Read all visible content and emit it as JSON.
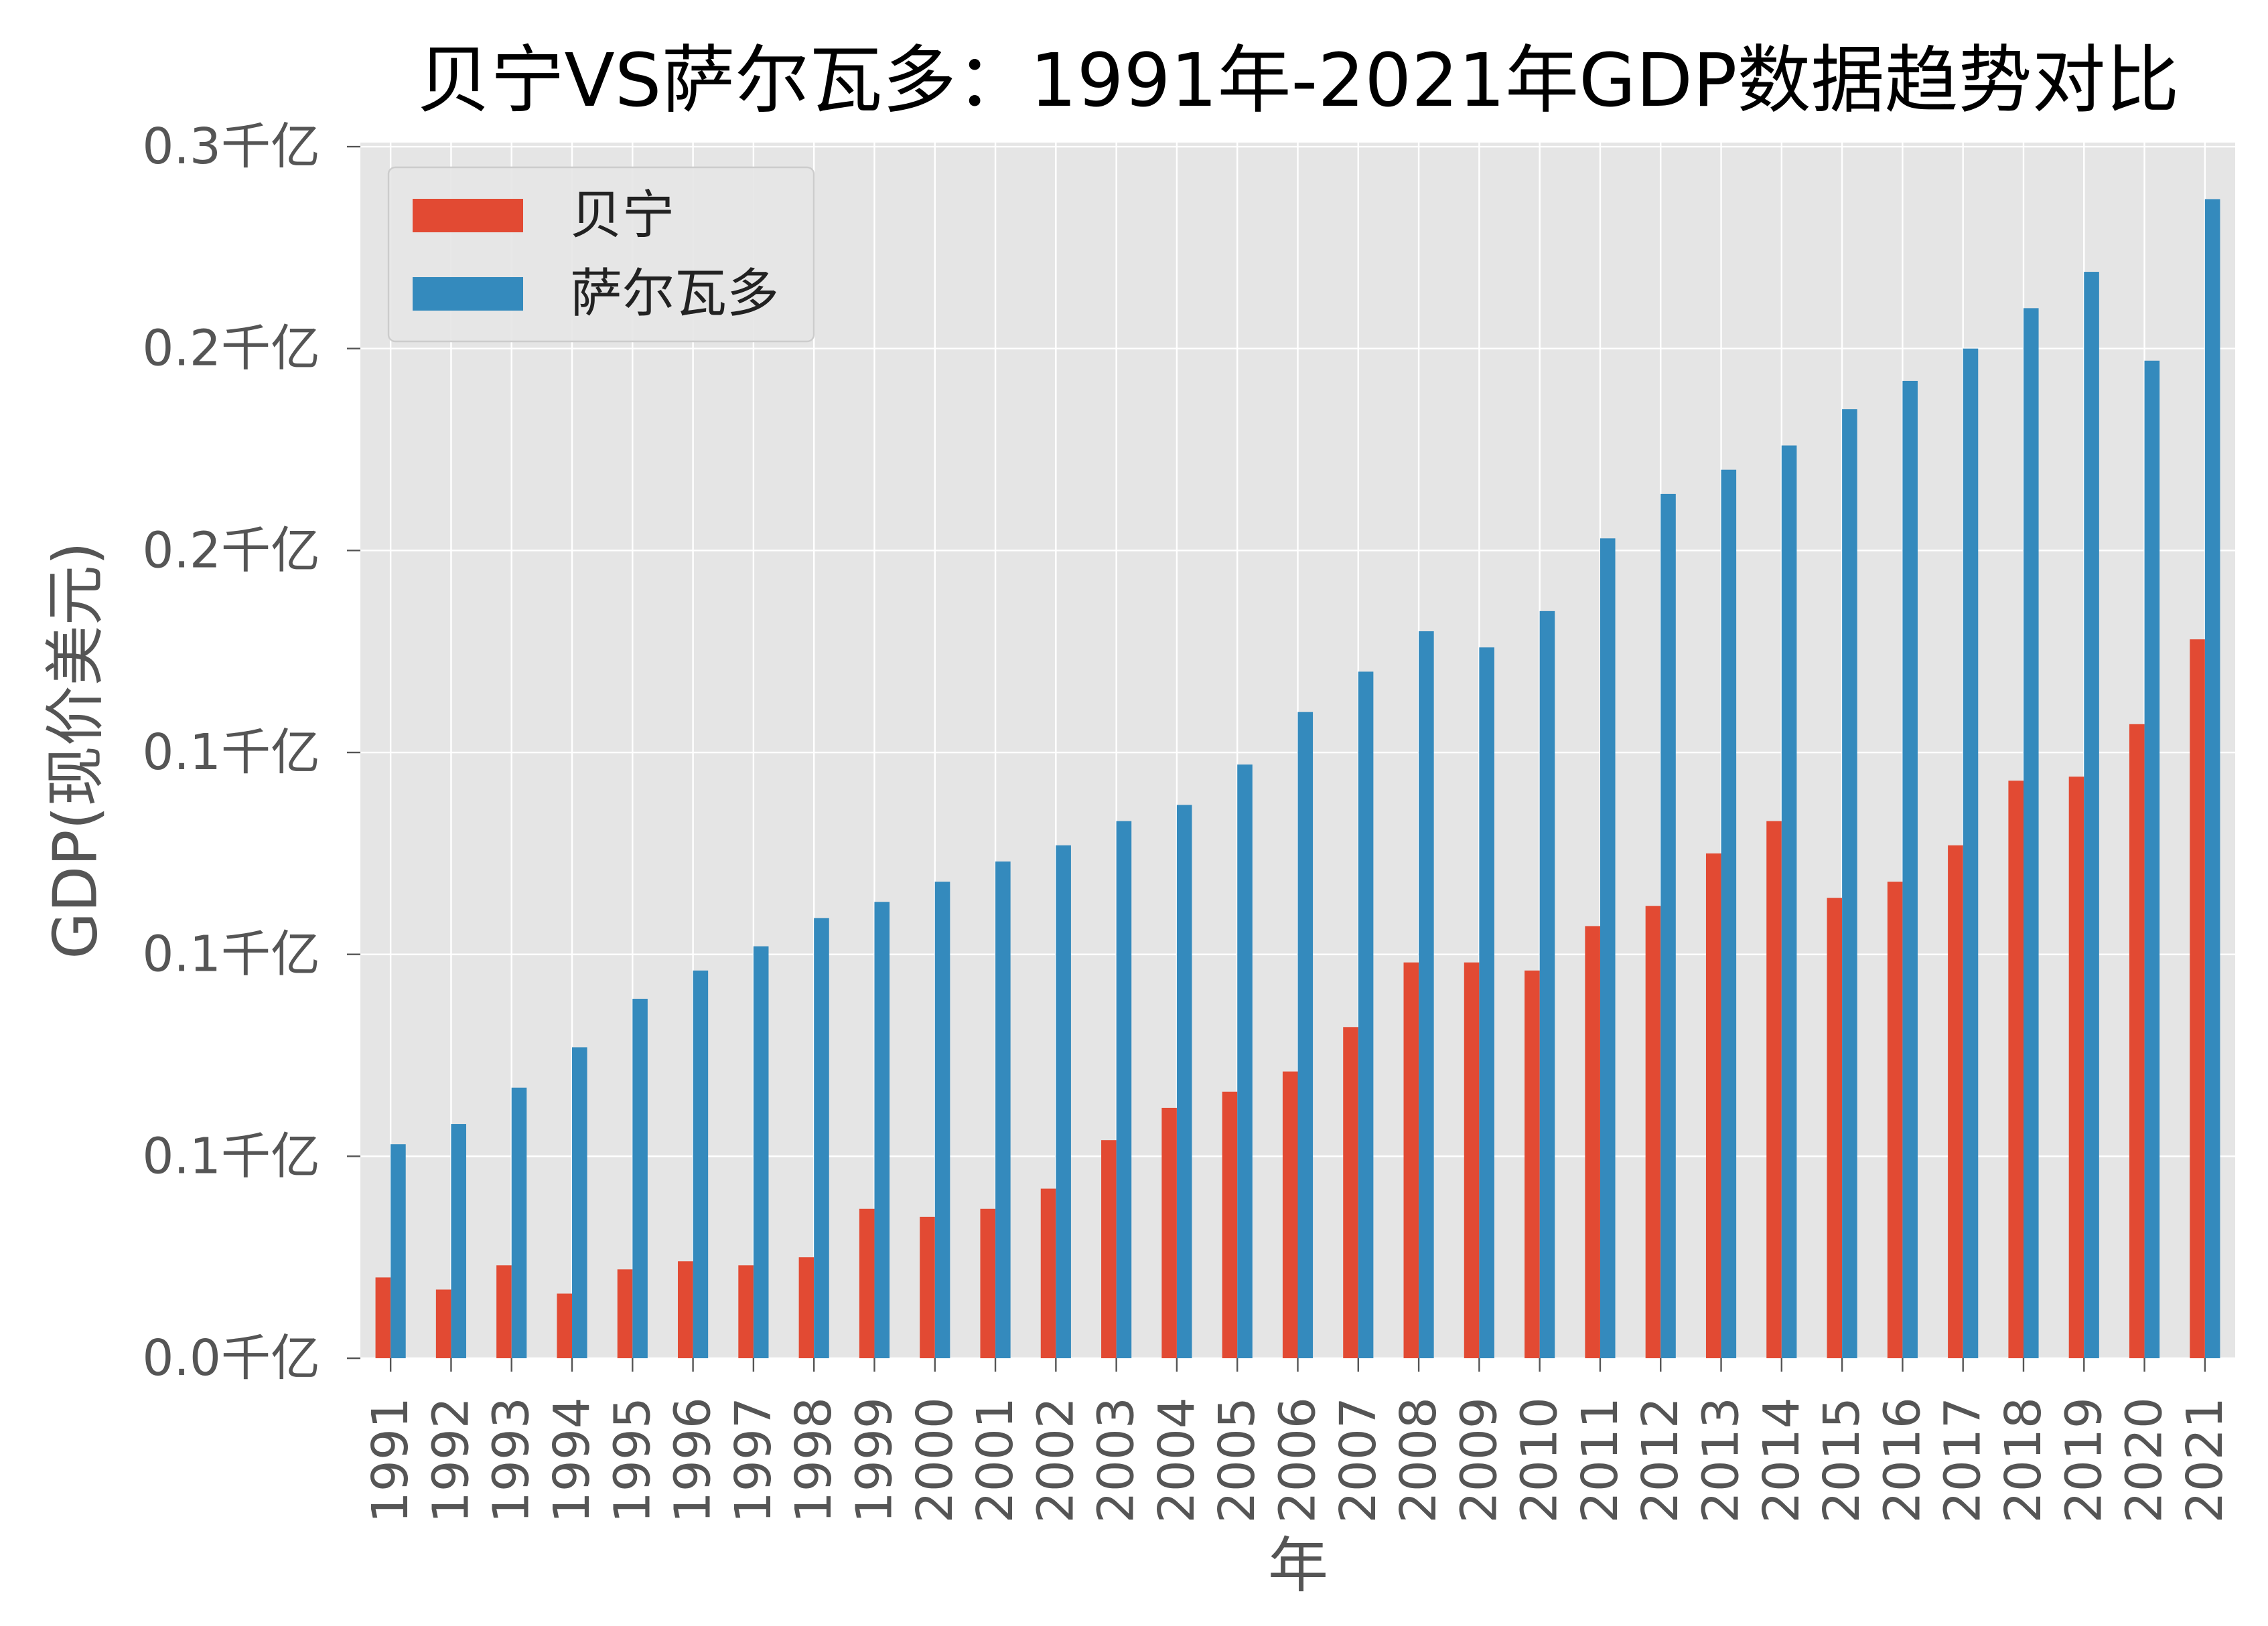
{
  "chart_data": {
    "type": "bar",
    "title": "贝宁VS萨尔瓦多：1991年-2021年GDP数据趋势对比",
    "xlabel": "年",
    "ylabel": "GDP(现价美元)",
    "categories": [
      "1991",
      "1992",
      "1993",
      "1994",
      "1995",
      "1996",
      "1997",
      "1998",
      "1999",
      "2000",
      "2001",
      "2002",
      "2003",
      "2004",
      "2005",
      "2006",
      "2007",
      "2008",
      "2009",
      "2010",
      "2011",
      "2012",
      "2013",
      "2014",
      "2015",
      "2016",
      "2017",
      "2018",
      "2019",
      "2020",
      "2021"
    ],
    "series": [
      {
        "name": "贝宁",
        "color": "#E24A33",
        "values": [
          0.02,
          0.017,
          0.023,
          0.016,
          0.022,
          0.024,
          0.023,
          0.025,
          0.037,
          0.035,
          0.037,
          0.042,
          0.054,
          0.062,
          0.066,
          0.071,
          0.082,
          0.098,
          0.098,
          0.096,
          0.107,
          0.112,
          0.125,
          0.133,
          0.114,
          0.118,
          0.127,
          0.143,
          0.144,
          0.157,
          0.178
        ]
      },
      {
        "name": "萨尔瓦多",
        "color": "#348ABD",
        "values": [
          0.053,
          0.058,
          0.067,
          0.077,
          0.089,
          0.096,
          0.102,
          0.109,
          0.113,
          0.118,
          0.123,
          0.127,
          0.133,
          0.137,
          0.147,
          0.16,
          0.17,
          0.18,
          0.176,
          0.185,
          0.203,
          0.214,
          0.22,
          0.226,
          0.235,
          0.242,
          0.25,
          0.26,
          0.269,
          0.247,
          0.287
        ]
      }
    ],
    "yticks": [
      0.0,
      0.05,
      0.1,
      0.15,
      0.2,
      0.25,
      0.3
    ],
    "ytick_labels": [
      "0.0千亿",
      "0.1千亿",
      "0.1千亿",
      "0.1千亿",
      "0.2千亿",
      "0.2千亿",
      "0.3千亿"
    ],
    "ylim": [
      0,
      0.301
    ],
    "grid": true,
    "legend_position": "top-left",
    "colors": {
      "plot_background": "#E5E5E5",
      "grid": "#FFFFFF",
      "legend_border": "#CCCCCC"
    }
  }
}
